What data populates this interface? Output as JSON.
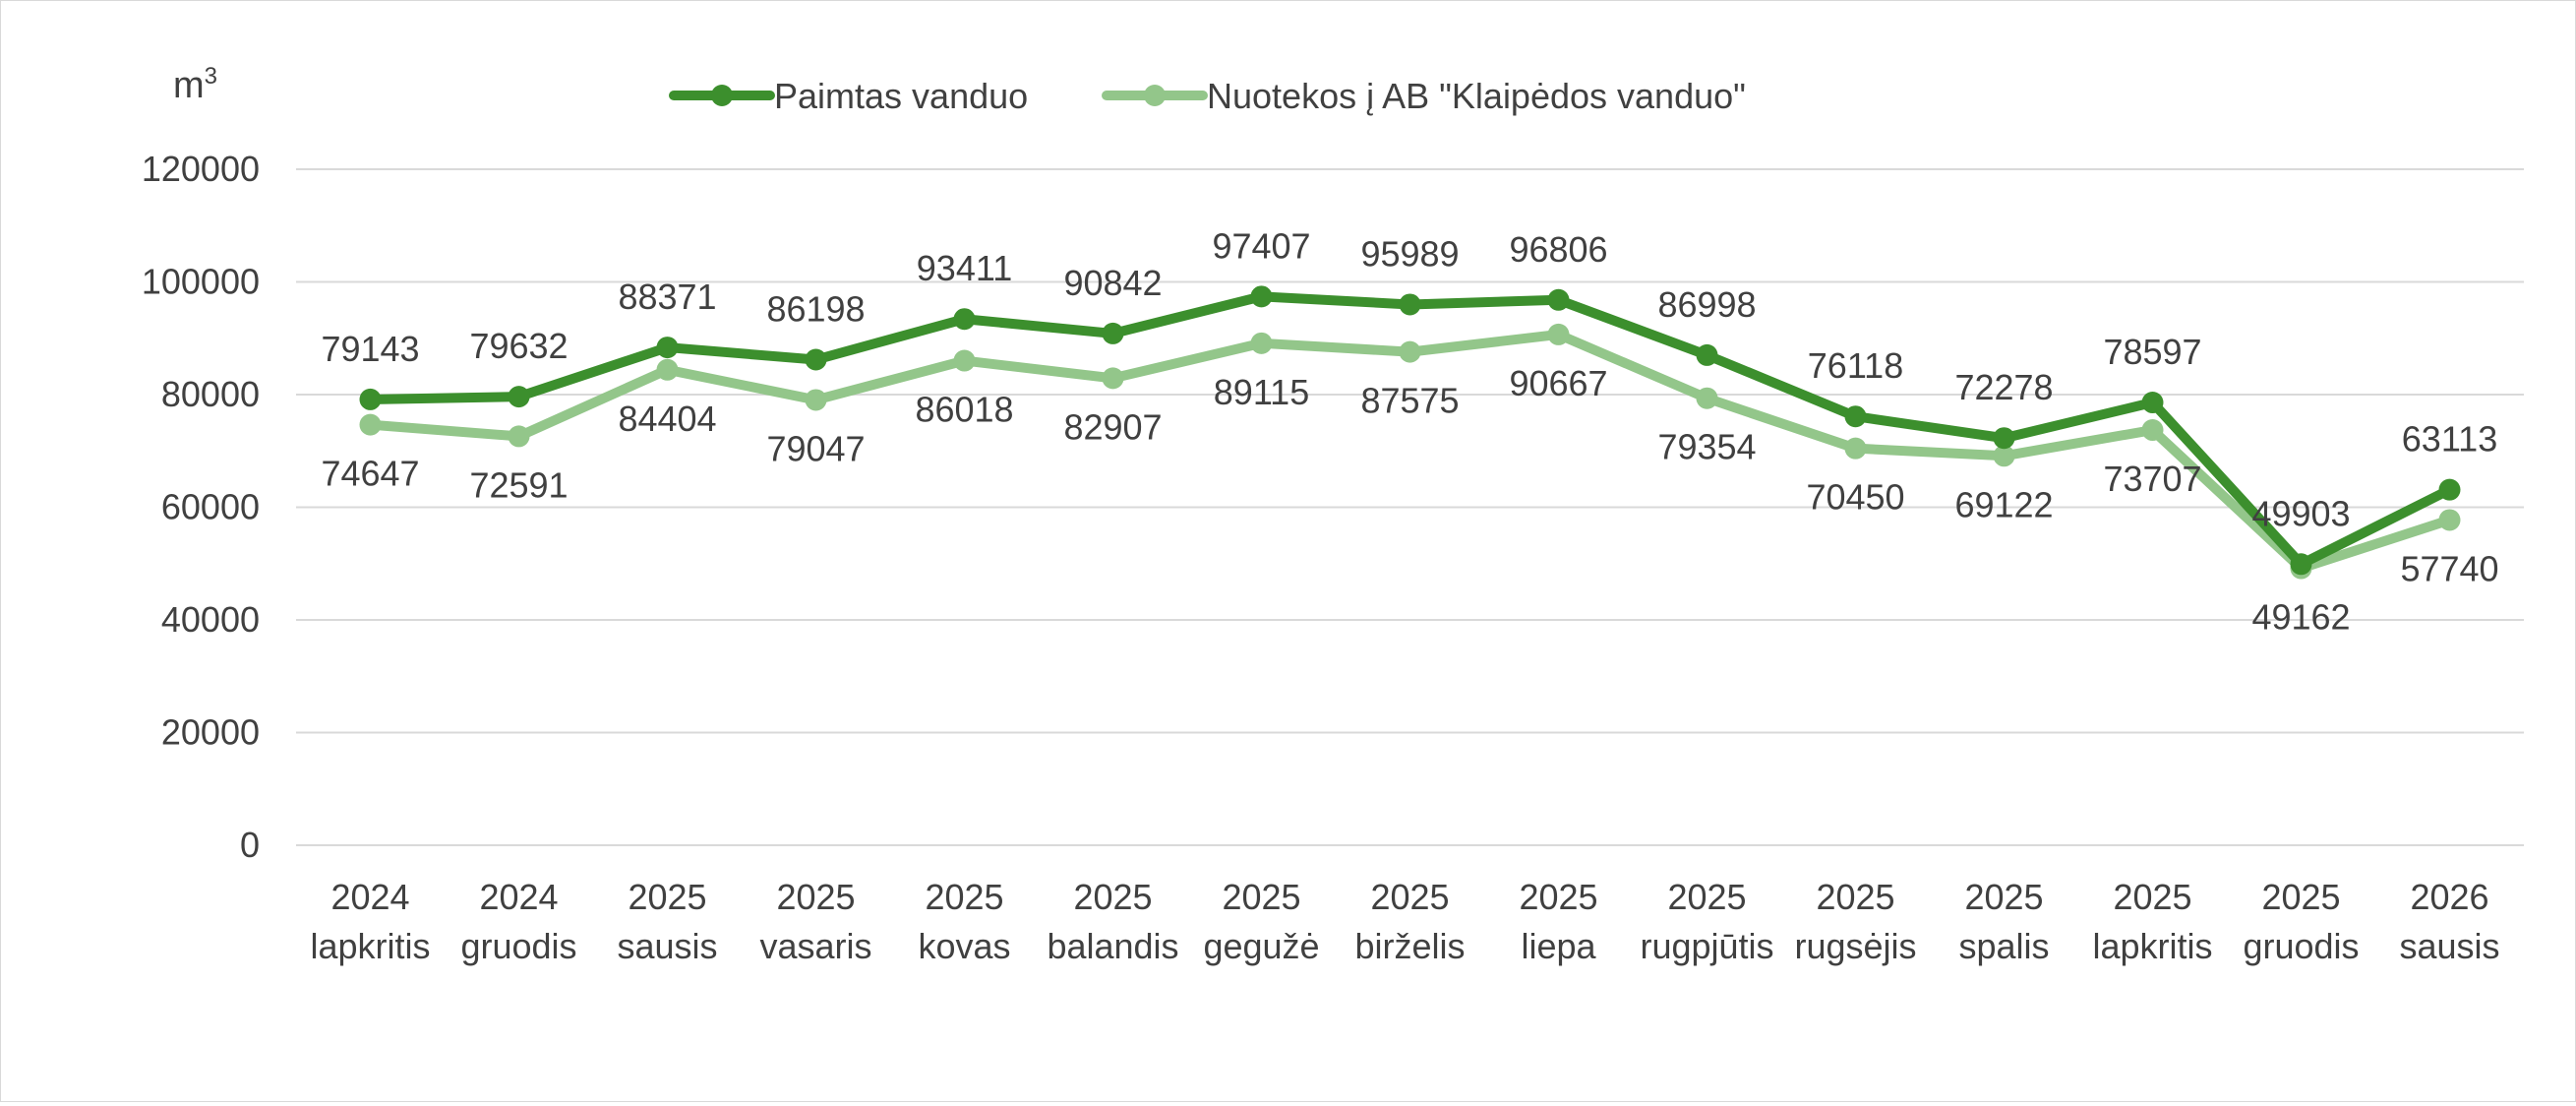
{
  "chart_data": {
    "type": "line",
    "unit_label": "m",
    "unit_superscript": "3",
    "categories": [
      [
        "2024",
        "lapkritis"
      ],
      [
        "2024",
        "gruodis"
      ],
      [
        "2025",
        "sausis"
      ],
      [
        "2025",
        "vasaris"
      ],
      [
        "2025",
        "kovas"
      ],
      [
        "2025",
        "balandis"
      ],
      [
        "2025",
        "gegužė"
      ],
      [
        "2025",
        "birželis"
      ],
      [
        "2025",
        "liepa"
      ],
      [
        "2025",
        "rugpjūtis"
      ],
      [
        "2025",
        "rugsėjis"
      ],
      [
        "2025",
        "spalis"
      ],
      [
        "2025",
        "lapkritis"
      ],
      [
        "2025",
        "gruodis"
      ],
      [
        "2026",
        "sausis"
      ]
    ],
    "yticks": [
      "0",
      "20000",
      "40000",
      "60000",
      "80000",
      "100000",
      "120000"
    ],
    "ylim": [
      0,
      120000
    ],
    "grid": true,
    "legend_position": "top",
    "series": [
      {
        "name": "Paimtas vanduo",
        "color": "#3c8f2d",
        "label_position": "above",
        "values": [
          79143,
          79632,
          88371,
          86198,
          93411,
          90842,
          97407,
          95989,
          96806,
          86998,
          76118,
          72278,
          78597,
          49903,
          63113
        ]
      },
      {
        "name": "Nuotekos į AB \"Klaipėdos vanduo\"",
        "color": "#93c68a",
        "label_position": "below",
        "values": [
          74647,
          72591,
          84404,
          79047,
          86018,
          82907,
          89115,
          87575,
          90667,
          79354,
          70450,
          69122,
          73707,
          49162,
          57740
        ]
      }
    ]
  }
}
